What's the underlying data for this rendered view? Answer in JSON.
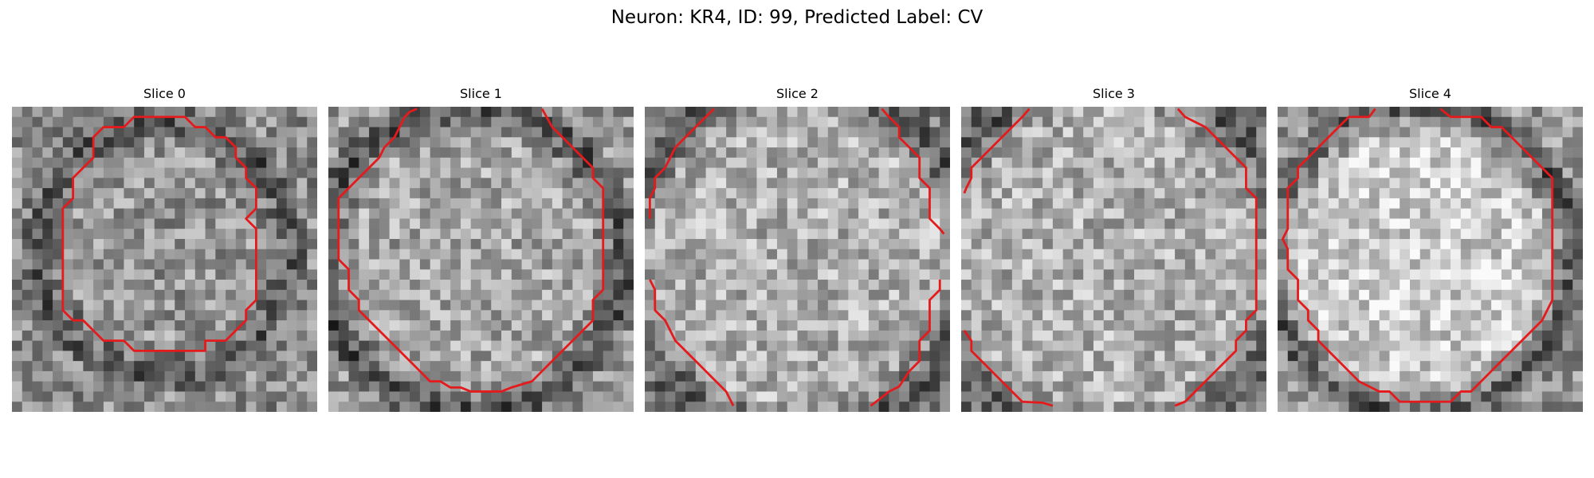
{
  "figure": {
    "title": "Neuron: KR4, ID: 99, Predicted Label: CV"
  },
  "panels": [
    {
      "title": "Slice 0",
      "index": 0
    },
    {
      "title": "Slice 1",
      "index": 1
    },
    {
      "title": "Slice 2",
      "index": 2
    },
    {
      "title": "Slice 3",
      "index": 3
    },
    {
      "title": "Slice 4",
      "index": 4
    }
  ],
  "style": {
    "contour_color": "#e41a1c",
    "image_colormap": "grayscale"
  }
}
